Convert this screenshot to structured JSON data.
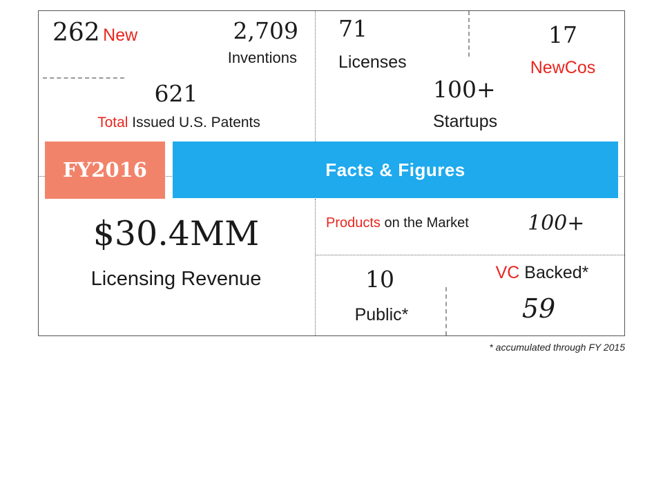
{
  "new_inventions": {
    "count": "262",
    "label": "New"
  },
  "inventions": {
    "count": "2,709",
    "label": "Inventions"
  },
  "patents": {
    "count": "621",
    "label_highlight": "Total",
    "label_rest": " Issued U.S. Patents"
  },
  "licenses": {
    "count": "71",
    "label": "Licenses"
  },
  "newcos": {
    "count": "17",
    "label": "NewCos"
  },
  "startups": {
    "count": "100+",
    "label": "Startups"
  },
  "banner": {
    "fiscal_year": "FY2016",
    "title": "Facts & Figures"
  },
  "revenue": {
    "amount": "$30.4MM",
    "label": "Licensing Revenue"
  },
  "products": {
    "label_highlight": "Products",
    "label_rest": " on the Market",
    "count": "100+"
  },
  "public_cos": {
    "count": "10",
    "label": "Public*"
  },
  "vc_backed": {
    "label_highlight": "VC",
    "label_rest": " Backed*",
    "count": "59"
  },
  "footnote": "* accumulated through FY 2015",
  "colors": {
    "accent_red": "#e8261f",
    "fy_salmon": "#f2836b",
    "banner_blue": "#1eaaed"
  }
}
